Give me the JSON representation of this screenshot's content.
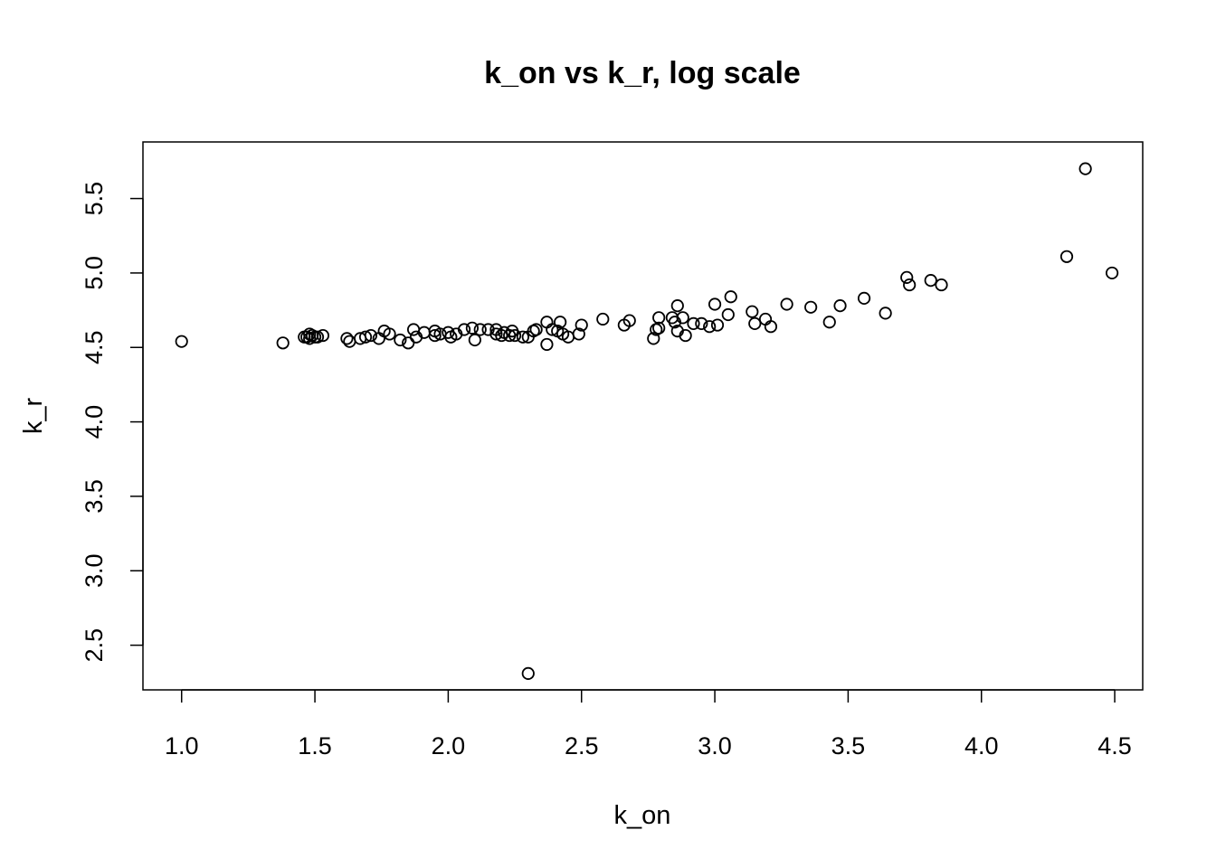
{
  "chart_data": {
    "type": "scatter",
    "title": "k_on vs k_r, log scale",
    "xlabel": "k_on",
    "ylabel": "k_r",
    "xlim": [
      0.855,
      4.605
    ],
    "ylim": [
      2.2,
      5.88
    ],
    "xticks": [
      "1.0",
      "1.5",
      "2.0",
      "2.5",
      "3.0",
      "3.5",
      "4.0",
      "4.5"
    ],
    "yticks": [
      "2.5",
      "3.0",
      "3.5",
      "4.0",
      "4.5",
      "5.0",
      "5.5"
    ],
    "grid": false,
    "legend": "none",
    "series": [
      {
        "points": [
          [
            1.0,
            4.54
          ],
          [
            1.38,
            4.53
          ],
          [
            1.46,
            4.57
          ],
          [
            1.47,
            4.57
          ],
          [
            1.48,
            4.56
          ],
          [
            1.48,
            4.59
          ],
          [
            1.49,
            4.58
          ],
          [
            1.5,
            4.57
          ],
          [
            1.51,
            4.57
          ],
          [
            1.53,
            4.58
          ],
          [
            1.62,
            4.56
          ],
          [
            1.63,
            4.54
          ],
          [
            1.67,
            4.56
          ],
          [
            1.69,
            4.57
          ],
          [
            1.71,
            4.58
          ],
          [
            1.74,
            4.56
          ],
          [
            1.76,
            4.61
          ],
          [
            1.78,
            4.59
          ],
          [
            1.82,
            4.55
          ],
          [
            1.85,
            4.53
          ],
          [
            1.87,
            4.62
          ],
          [
            1.88,
            4.57
          ],
          [
            1.91,
            4.6
          ],
          [
            1.95,
            4.61
          ],
          [
            1.95,
            4.58
          ],
          [
            1.97,
            4.59
          ],
          [
            2.0,
            4.6
          ],
          [
            2.01,
            4.57
          ],
          [
            2.03,
            4.59
          ],
          [
            2.06,
            4.62
          ],
          [
            2.09,
            4.63
          ],
          [
            2.1,
            4.55
          ],
          [
            2.12,
            4.62
          ],
          [
            2.15,
            4.62
          ],
          [
            2.18,
            4.59
          ],
          [
            2.18,
            4.62
          ],
          [
            2.2,
            4.58
          ],
          [
            2.21,
            4.6
          ],
          [
            2.23,
            4.58
          ],
          [
            2.24,
            4.61
          ],
          [
            2.25,
            4.58
          ],
          [
            2.28,
            4.57
          ],
          [
            2.3,
            4.57
          ],
          [
            2.3,
            2.31
          ],
          [
            2.32,
            4.61
          ],
          [
            2.33,
            4.62
          ],
          [
            2.37,
            4.67
          ],
          [
            2.37,
            4.52
          ],
          [
            2.39,
            4.62
          ],
          [
            2.41,
            4.61
          ],
          [
            2.42,
            4.67
          ],
          [
            2.43,
            4.59
          ],
          [
            2.45,
            4.57
          ],
          [
            2.49,
            4.59
          ],
          [
            2.5,
            4.65
          ],
          [
            2.58,
            4.69
          ],
          [
            2.66,
            4.65
          ],
          [
            2.68,
            4.68
          ],
          [
            2.77,
            4.56
          ],
          [
            2.78,
            4.62
          ],
          [
            2.79,
            4.63
          ],
          [
            2.79,
            4.7
          ],
          [
            2.84,
            4.7
          ],
          [
            2.85,
            4.67
          ],
          [
            2.86,
            4.78
          ],
          [
            2.86,
            4.61
          ],
          [
            2.88,
            4.7
          ],
          [
            2.89,
            4.58
          ],
          [
            2.92,
            4.66
          ],
          [
            2.95,
            4.66
          ],
          [
            2.98,
            4.64
          ],
          [
            3.0,
            4.79
          ],
          [
            3.01,
            4.65
          ],
          [
            3.05,
            4.72
          ],
          [
            3.06,
            4.84
          ],
          [
            3.14,
            4.74
          ],
          [
            3.15,
            4.66
          ],
          [
            3.19,
            4.69
          ],
          [
            3.21,
            4.64
          ],
          [
            3.27,
            4.79
          ],
          [
            3.36,
            4.77
          ],
          [
            3.43,
            4.67
          ],
          [
            3.47,
            4.78
          ],
          [
            3.56,
            4.83
          ],
          [
            3.64,
            4.73
          ],
          [
            3.72,
            4.97
          ],
          [
            3.73,
            4.92
          ],
          [
            3.81,
            4.95
          ],
          [
            3.85,
            4.92
          ],
          [
            4.32,
            5.11
          ],
          [
            4.39,
            5.7
          ],
          [
            4.49,
            5.0
          ]
        ]
      }
    ]
  }
}
